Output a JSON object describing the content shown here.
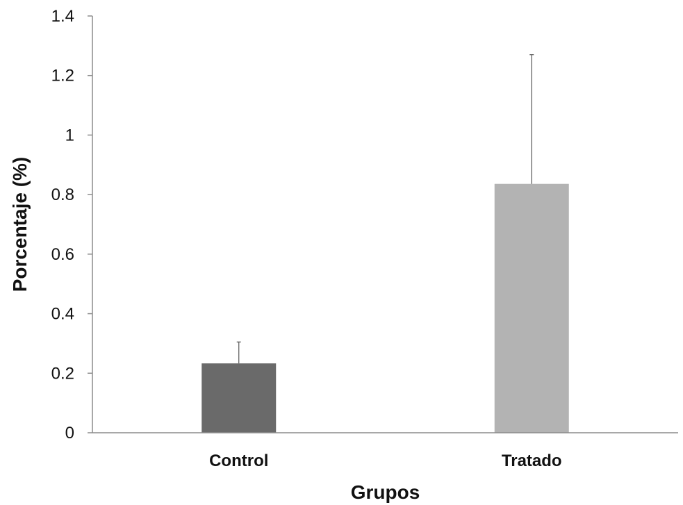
{
  "chart_data": {
    "type": "bar",
    "title": "",
    "xlabel": "Grupos",
    "ylabel": "Porcentaje (%)",
    "categories": [
      "Control",
      "Tratado"
    ],
    "values": [
      0.233,
      0.836
    ],
    "error_upper": [
      0.305,
      1.27
    ],
    "ylim": [
      0,
      1.4
    ],
    "yticks": [
      0,
      0.2,
      0.4,
      0.6,
      0.8,
      1,
      1.2,
      1.4
    ],
    "ytick_labels": [
      "0",
      "0.2",
      "0.4",
      "0.6",
      "0.8",
      "1",
      "1.2",
      "1.4"
    ],
    "bar_colors": [
      "#6a6a6a",
      "#b3b3b3"
    ],
    "grid": false,
    "legend": "none"
  }
}
